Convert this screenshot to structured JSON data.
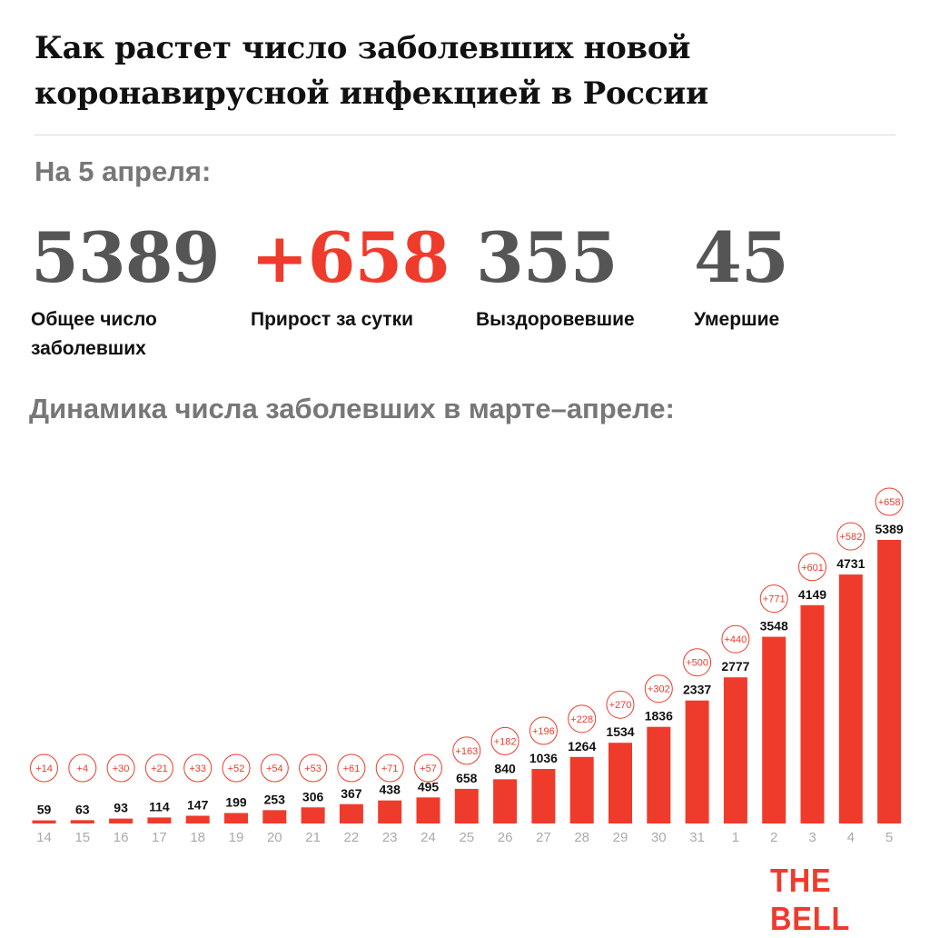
{
  "title": "Как растет число заболевших новой коронавирусной инфекцией в России",
  "date_label": "На 5 апреля:",
  "stats": [
    {
      "value": "5389",
      "caption": "Общее число заболевших"
    },
    {
      "value": "+658",
      "caption": "Прирост за сутки"
    },
    {
      "value": "355",
      "caption": "Выздоровевшие"
    },
    {
      "value": "45",
      "caption": "Умершие"
    }
  ],
  "subtitle": "Динамика числа заболевших в марте–апреле:",
  "logo": "THE BELL",
  "colors": {
    "accent": "#ef3b2c",
    "gray": "#777777",
    "text": "#111111"
  },
  "chart_data": {
    "type": "bar",
    "categories": [
      "14",
      "15",
      "16",
      "17",
      "18",
      "19",
      "20",
      "21",
      "22",
      "23",
      "24",
      "25",
      "26",
      "27",
      "28",
      "29",
      "30",
      "31",
      "1",
      "2",
      "3",
      "4",
      "5"
    ],
    "values": [
      59,
      63,
      93,
      114,
      147,
      199,
      253,
      306,
      367,
      438,
      495,
      658,
      840,
      1036,
      1264,
      1534,
      1836,
      2337,
      2777,
      3548,
      4149,
      4731,
      5389
    ],
    "increments": [
      "+14",
      "+4",
      "+30",
      "+21",
      "+33",
      "+52",
      "+54",
      "+53",
      "+61",
      "+71",
      "+57",
      "+163",
      "+182",
      "+196",
      "+228",
      "+270",
      "+302",
      "+500",
      "+440",
      "+771",
      "+601",
      "+582",
      "+658"
    ],
    "ylim": [
      0,
      5389
    ],
    "bar_color": "#ef3b2c"
  }
}
